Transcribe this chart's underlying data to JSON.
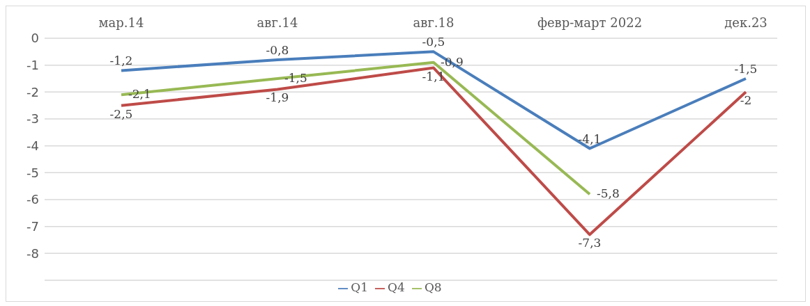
{
  "chart_data": {
    "type": "line",
    "categories": [
      "мар.14",
      "авг.14",
      "авг.18",
      "февр-март 2022",
      "дек.23"
    ],
    "series": [
      {
        "name": "Q1",
        "color": "#4a7ebb",
        "values": [
          -1.2,
          -0.8,
          -0.5,
          -4.1,
          -1.5
        ],
        "value_labels": [
          "-1,2",
          "-0,8",
          "-0,5",
          "-4,1",
          "-1,5"
        ]
      },
      {
        "name": "Q4",
        "color": "#be4b48",
        "values": [
          -2.5,
          -1.9,
          -1.1,
          -7.3,
          -2
        ],
        "value_labels": [
          "-2,5",
          "-1,9",
          "-1,1",
          "-7,3",
          "-2"
        ]
      },
      {
        "name": "Q8",
        "color": "#98b954",
        "values": [
          -2.1,
          -1.5,
          -0.9,
          -5.8,
          null
        ],
        "value_labels": [
          "-2,1",
          "-1,5",
          "-0,9",
          "-5,8",
          null
        ]
      }
    ],
    "ylim": [
      -9,
      0
    ],
    "yticks": [
      0,
      -1,
      -2,
      -3,
      -4,
      -5,
      -6,
      -7,
      -8
    ],
    "grid": "y",
    "legend": "bottom",
    "marker": "none",
    "line_style": "solid"
  }
}
